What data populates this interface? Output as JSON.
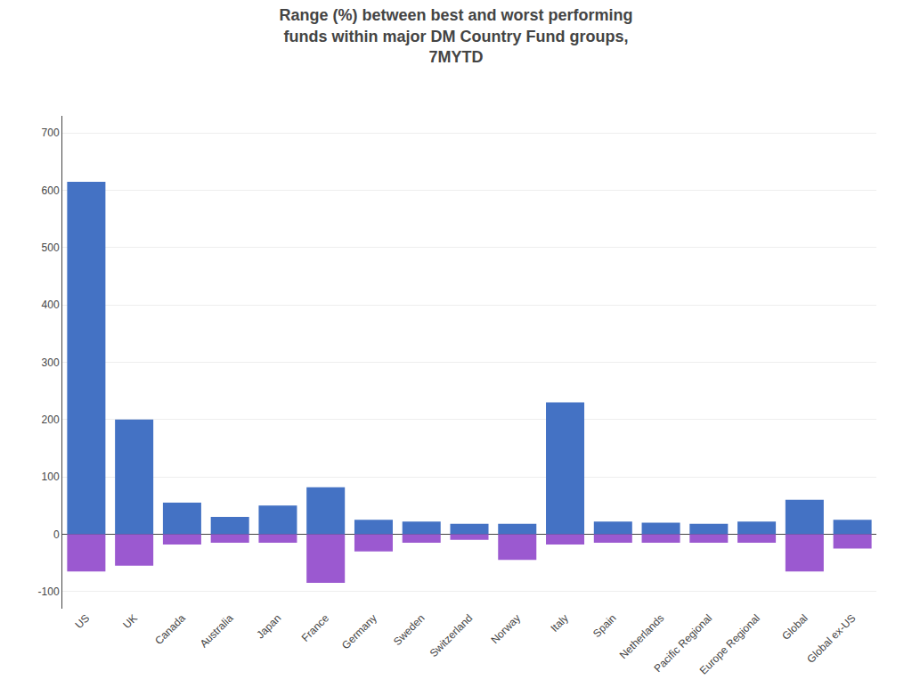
{
  "chart_data": {
    "type": "bar",
    "title": "Range (%) between best and worst performing\nfunds within major DM Country Fund groups,\n7MYTD",
    "categories": [
      "US",
      "UK",
      "Canada",
      "Australia",
      "Japan",
      "France",
      "Germany",
      "Sweden",
      "Switzerland",
      "Norway",
      "Italy",
      "Spain",
      "Netherlands",
      "Pacific Regional",
      "Europe Regional",
      "Global",
      "Global ex-US"
    ],
    "series": [
      {
        "color": "#4472C4",
        "values": [
          615,
          200,
          55,
          30,
          50,
          82,
          25,
          22,
          18,
          18,
          230,
          22,
          20,
          18,
          22,
          60,
          25
        ]
      },
      {
        "color": "#9B59D0",
        "values": [
          -65,
          -55,
          -18,
          -15,
          -15,
          -85,
          -30,
          -15,
          -10,
          -45,
          -18,
          -15,
          -15,
          -15,
          -15,
          -65,
          -25
        ]
      }
    ],
    "ylim": [
      -130,
      730
    ],
    "yticks": [
      -100,
      0,
      100,
      200,
      300,
      400,
      500,
      600,
      700
    ],
    "grid": true
  }
}
